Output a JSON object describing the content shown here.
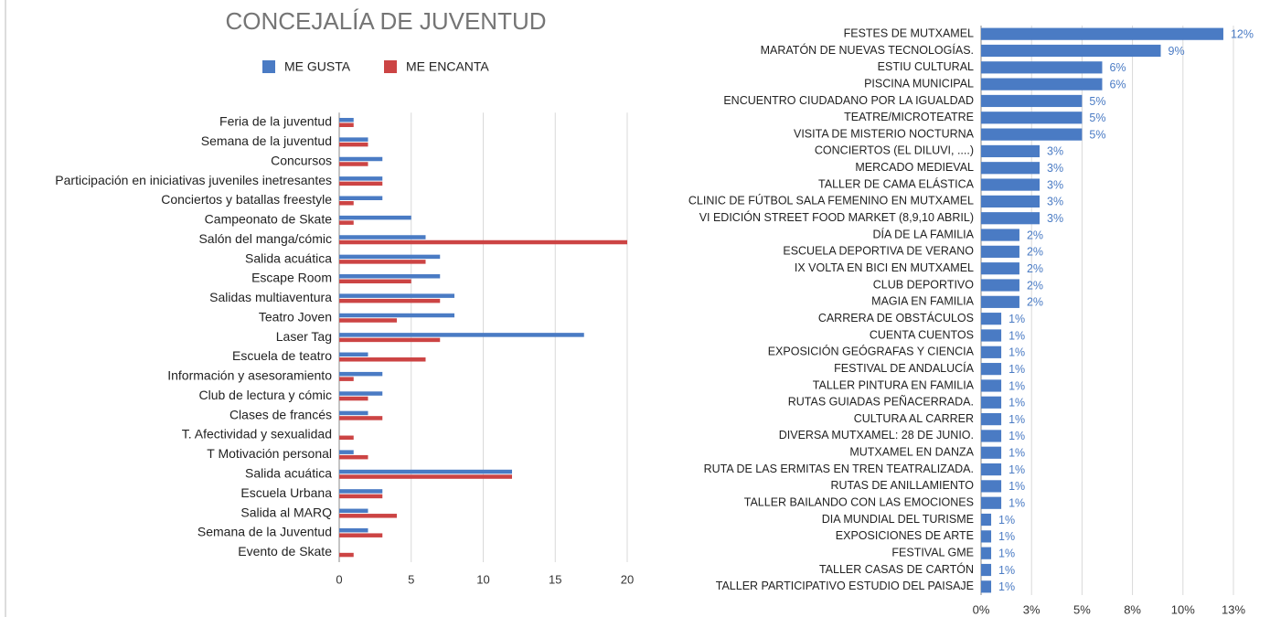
{
  "chart_data": [
    {
      "type": "bar",
      "orientation": "horizontal",
      "title": "CONCEJALÍA DE JUVENTUD",
      "categories": [
        "Feria de la juventud",
        "Semana de la juventud",
        "Concursos",
        "Participación en iniciativas juveniles inetresantes",
        "Conciertos y batallas freestyle",
        "Campeonato de Skate",
        "Salón del manga/cómic",
        "Salida acuática",
        "Escape Room",
        "Salidas multiaventura",
        "Teatro Joven",
        "Laser Tag",
        "Escuela de teatro",
        "Información y asesoramiento",
        "Club de lectura y cómic",
        "Clases de francés",
        "T. Afectividad y sexualidad",
        "T Motivación personal",
        "Salida acuática",
        "Escuela Urbana",
        "Salida al MARQ",
        "Semana de la Juventud",
        "Evento de Skate"
      ],
      "series": [
        {
          "name": "ME GUSTA",
          "color": "#4a7bc4",
          "values": [
            1,
            2,
            3,
            3,
            3,
            5,
            6,
            7,
            7,
            8,
            8,
            17,
            2,
            3,
            3,
            2,
            0,
            1,
            12,
            3,
            2,
            2,
            0
          ]
        },
        {
          "name": "ME ENCANTA",
          "color": "#cc4444",
          "values": [
            1,
            2,
            2,
            3,
            1,
            1,
            20,
            6,
            5,
            7,
            4,
            7,
            6,
            1,
            2,
            3,
            1,
            2,
            12,
            3,
            4,
            3,
            1
          ]
        }
      ],
      "xlim": [
        0,
        20
      ],
      "xticks": [
        0,
        5,
        10,
        15,
        20
      ],
      "grid": true,
      "legend": "top"
    },
    {
      "type": "bar",
      "orientation": "horizontal",
      "categories": [
        "FESTES DE MUTXAMEL",
        "MARATÓN DE NUEVAS TECNOLOGÍAS.",
        "ESTIU CULTURAL",
        "PISCINA MUNICIPAL",
        "ENCUENTRO CIUDADANO POR LA IGUALDAD",
        "TEATRE/MICROTEATRE",
        "VISITA DE MISTERIO NOCTURNA",
        "CONCIERTOS (EL DILUVI, ....)",
        "MERCADO MEDIEVAL",
        "TALLER DE CAMA ELÁSTICA",
        "CLINIC DE FÚTBOL SALA FEMENINO EN MUTXAMEL",
        "VI EDICIÓN STREET FOOD MARKET (8,9,10 ABRIL)",
        "DÍA DE LA FAMILIA",
        "ESCUELA DEPORTIVA DE VERANO",
        "IX VOLTA EN BICI EN MUTXAMEL",
        "CLUB DEPORTIVO",
        "MAGIA EN FAMILIA",
        "CARRERA DE OBSTÁCULOS",
        "CUENTA CUENTOS",
        "EXPOSICIÓN GEÓGRAFAS Y CIENCIA",
        "FESTIVAL DE ANDALUCÍA",
        "TALLER PINTURA EN FAMILIA",
        "RUTAS GUIADAS PEÑACERRADA.",
        "CULTURA AL CARRER",
        "DIVERSA MUTXAMEL: 28 DE JUNIO.",
        "MUTXAMEL EN DANZA",
        "RUTA DE LAS ERMITAS EN TREN TEATRALIZADA.",
        "RUTAS DE ANILLAMIENTO",
        "TALLER BAILANDO CON LAS EMOCIONES",
        "DIA MUNDIAL DEL TURISME",
        "EXPOSICIONES DE ARTE",
        "FESTIVAL GME",
        "TALLER CASAS DE CARTÓN",
        "TALLER PARTICIPATIVO ESTUDIO DEL PAISAJE"
      ],
      "values": [
        12,
        8.9,
        6,
        6,
        5,
        5,
        5,
        2.9,
        2.9,
        2.9,
        2.9,
        2.9,
        1.9,
        1.9,
        1.9,
        1.9,
        1.9,
        1,
        1,
        1,
        1,
        1,
        1,
        1,
        1,
        1,
        1,
        1,
        1,
        0.5,
        0.5,
        0.5,
        0.5,
        0.5
      ],
      "value_labels": [
        "12%",
        "9%",
        "6%",
        "6%",
        "5%",
        "5%",
        "5%",
        "3%",
        "3%",
        "3%",
        "3%",
        "3%",
        "2%",
        "2%",
        "2%",
        "2%",
        "2%",
        "1%",
        "1%",
        "1%",
        "1%",
        "1%",
        "1%",
        "1%",
        "1%",
        "1%",
        "1%",
        "1%",
        "1%",
        "1%",
        "1%",
        "1%",
        "1%",
        "1%"
      ],
      "color": "#4a7bc4",
      "xlim": [
        0,
        12.5
      ],
      "xticks": [
        {
          "value": 0,
          "label": "0%"
        },
        {
          "value": 2.5,
          "label": "3%"
        },
        {
          "value": 5,
          "label": "5%"
        },
        {
          "value": 7.5,
          "label": "8%"
        },
        {
          "value": 10,
          "label": "10%"
        },
        {
          "value": 12.5,
          "label": "13%"
        }
      ],
      "grid": true
    }
  ]
}
